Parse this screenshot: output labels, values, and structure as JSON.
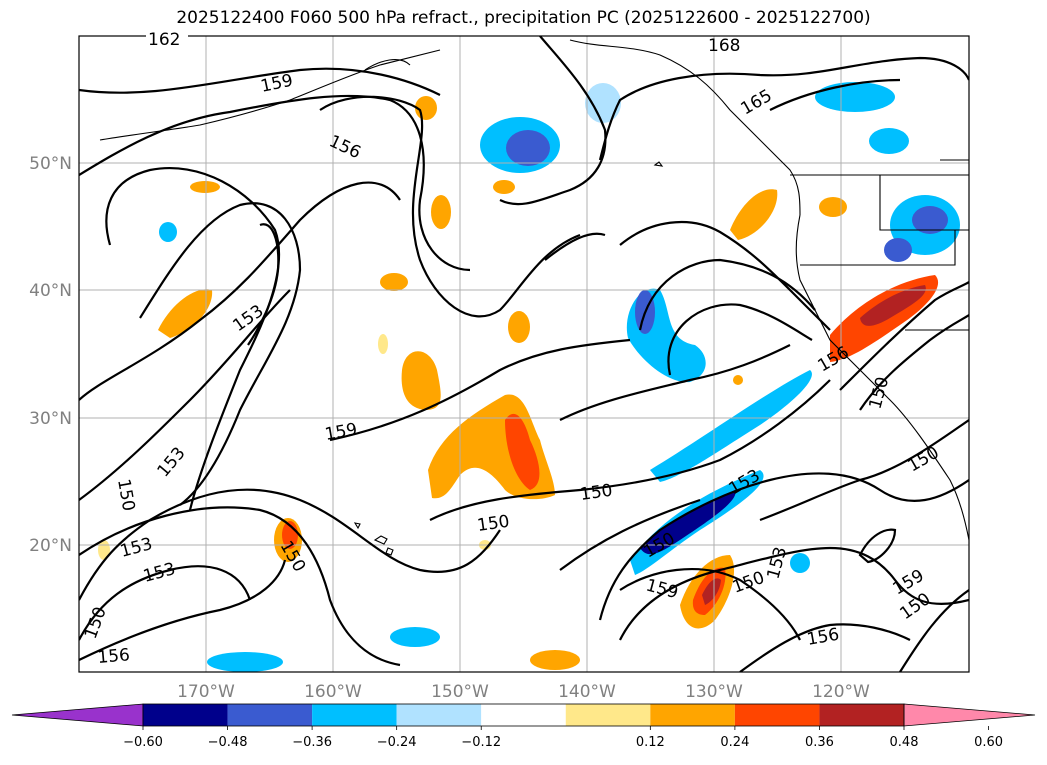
{
  "title": "2025122400 F060 500 hPa refract., precipitation PC (2025122600 - 2025122700)",
  "lat_labels": [
    "50°N",
    "40°N",
    "30°N",
    "20°N"
  ],
  "lon_labels": [
    "170°W",
    "160°W",
    "150°W",
    "140°W",
    "130°W",
    "120°W"
  ],
  "contour_labels": [
    "162",
    "168",
    "159",
    "165",
    "156",
    "153",
    "159",
    "153",
    "150",
    "150",
    "153",
    "153",
    "150",
    "150",
    "150",
    "159",
    "150",
    "153",
    "156",
    "156",
    "150",
    "153",
    "150",
    "156",
    "150",
    "159",
    "150",
    "156"
  ],
  "colorbar": {
    "ticks": [
      "−0.60",
      "−0.48",
      "−0.36",
      "−0.24",
      "−0.12",
      "0.12",
      "0.24",
      "0.36",
      "0.48",
      "0.60"
    ],
    "colors": [
      "#9932cc",
      "#00008b",
      "#3a5bd0",
      "#00bfff",
      "#b0e2ff",
      "#ffffff",
      "#ffe88a",
      "#ffa500",
      "#ff4500",
      "#b22222",
      "#ff88aa"
    ]
  },
  "fill_colors": {
    "neg_light": "#b0e2ff",
    "neg_mid": "#00bfff",
    "neg_strong": "#3a5bd0",
    "neg_xstrong": "#00008b",
    "pos_light": "#ffe88a",
    "pos_mid": "#ffa500",
    "pos_strong": "#ff4500",
    "pos_xstrong": "#b22222"
  }
}
